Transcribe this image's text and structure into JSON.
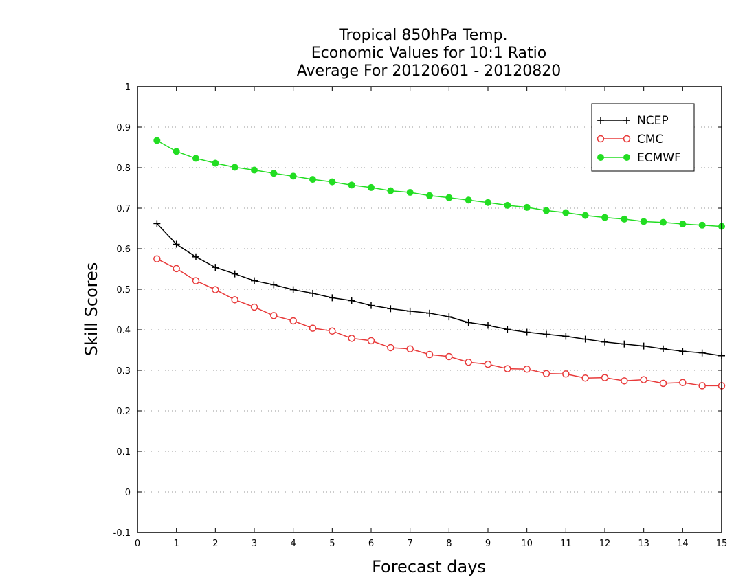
{
  "chart_data": {
    "type": "line",
    "title": [
      "Tropical 850hPa Temp.",
      "Economic Values for 10:1 Ratio",
      "Average For 20120601 - 20120820"
    ],
    "xlabel": "Forecast days",
    "ylabel": "Skill Scores",
    "xlim": [
      0,
      15
    ],
    "ylim": [
      -0.1,
      1
    ],
    "xticks": [
      0,
      1,
      2,
      3,
      4,
      5,
      6,
      7,
      8,
      9,
      10,
      11,
      12,
      13,
      14,
      15
    ],
    "xtick_labels": [
      "0",
      "1",
      "2",
      "3",
      "4",
      "5",
      "6",
      "7",
      "8",
      "9",
      "10",
      "11",
      "12",
      "13",
      "14",
      "15"
    ],
    "yticks": [
      -0.1,
      0,
      0.1,
      0.2,
      0.3,
      0.4,
      0.5,
      0.6,
      0.7,
      0.8,
      0.9,
      1
    ],
    "ytick_labels": [
      "-0.1",
      "0",
      "0.1",
      "0.2",
      "0.3",
      "0.4",
      "0.5",
      "0.6",
      "0.7",
      "0.8",
      "0.9",
      "1"
    ],
    "grid": "horizontal dotted",
    "legend_position": "top-right",
    "x": [
      0.5,
      1,
      1.5,
      2,
      2.5,
      3,
      3.5,
      4,
      4.5,
      5,
      5.5,
      6,
      6.5,
      7,
      7.5,
      8,
      8.5,
      9,
      9.5,
      10,
      10.5,
      11,
      11.5,
      12,
      12.5,
      13,
      13.5,
      14,
      14.5,
      15
    ],
    "series": [
      {
        "name": "NCEP",
        "color": "#000000",
        "marker": "plus",
        "values": [
          0.662,
          0.611,
          0.58,
          0.554,
          0.538,
          0.521,
          0.511,
          0.499,
          0.49,
          0.479,
          0.472,
          0.46,
          0.452,
          0.446,
          0.441,
          0.432,
          0.418,
          0.411,
          0.401,
          0.394,
          0.389,
          0.384,
          0.377,
          0.37,
          0.365,
          0.36,
          0.353,
          0.347,
          0.343,
          0.336
        ]
      },
      {
        "name": "CMC",
        "color": "#e83a3a",
        "marker": "open-circle",
        "values": [
          0.575,
          0.551,
          0.521,
          0.499,
          0.474,
          0.456,
          0.435,
          0.422,
          0.404,
          0.397,
          0.379,
          0.373,
          0.356,
          0.353,
          0.339,
          0.334,
          0.32,
          0.315,
          0.304,
          0.303,
          0.292,
          0.291,
          0.281,
          0.282,
          0.274,
          0.277,
          0.268,
          0.27,
          0.262,
          0.262
        ]
      },
      {
        "name": "ECMWF",
        "color": "#22dd22",
        "marker": "filled-circle",
        "values": [
          0.867,
          0.84,
          0.823,
          0.811,
          0.801,
          0.794,
          0.786,
          0.779,
          0.771,
          0.765,
          0.757,
          0.751,
          0.743,
          0.739,
          0.731,
          0.726,
          0.72,
          0.714,
          0.707,
          0.702,
          0.694,
          0.689,
          0.682,
          0.677,
          0.673,
          0.667,
          0.665,
          0.661,
          0.658,
          0.655
        ]
      }
    ]
  }
}
